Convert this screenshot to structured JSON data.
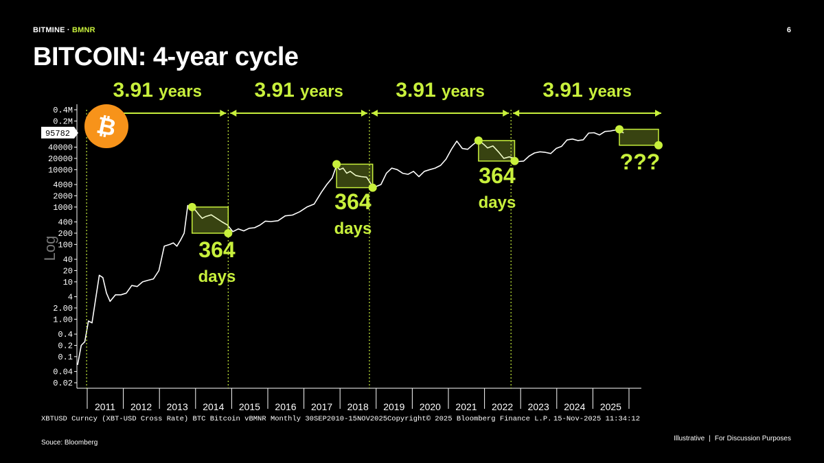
{
  "header": {
    "brand_prefix": "BITMINE · ",
    "brand_ticker": "BMNR",
    "page_number": "6"
  },
  "title": "BITCOIN: 4-year cycle",
  "footer": {
    "source": "Souce: Bloomberg",
    "illustrative": "Illustrative",
    "separator": "|",
    "discussion": "For Discussion Purposes"
  },
  "colors": {
    "accent": "#c8f03c",
    "line": "#ffffff",
    "background": "#000000",
    "bitcoin_orange": "#f7931a"
  },
  "icons": {
    "bitcoin_logo": "bitcoin-icon"
  },
  "chart_data": {
    "type": "line",
    "scale": "log",
    "ylabel": "Log",
    "current_value_label": "95782",
    "x_ticks": [
      "2011",
      "2012",
      "2013",
      "2014",
      "2015",
      "2016",
      "2017",
      "2018",
      "2019",
      "2020",
      "2021",
      "2022",
      "2023",
      "2024",
      "2025"
    ],
    "y_ticks": [
      "0.4M",
      "0.2M",
      "40000",
      "20000",
      "10000",
      "4000",
      "2000",
      "1000",
      "400",
      "200",
      "100",
      "40",
      "20",
      "10",
      "4",
      "2.00",
      "1.00",
      "0.4",
      "0.2",
      "0.1",
      "0.04",
      "0.02"
    ],
    "y_tick_values": [
      400000,
      200000,
      40000,
      20000,
      10000,
      4000,
      2000,
      1000,
      400,
      200,
      100,
      40,
      20,
      10,
      4,
      2,
      1,
      0.4,
      0.2,
      0.1,
      0.04,
      0.02
    ],
    "xlim": [
      2010.45,
      2025.95
    ],
    "ylim": [
      0.015,
      600000
    ],
    "series": [
      {
        "x": [
          2010.75,
          2010.85,
          2010.95,
          2011.05,
          2011.15,
          2011.25,
          2011.35,
          2011.45,
          2011.55,
          2011.65,
          2011.8,
          2011.95,
          2012.1,
          2012.25,
          2012.4,
          2012.55,
          2012.7,
          2012.85,
          2013.0,
          2013.15,
          2013.3,
          2013.4,
          2013.5,
          2013.6,
          2013.7,
          2013.8,
          2013.9,
          2014.0,
          2014.1,
          2014.2,
          2014.3,
          2014.45,
          2014.6,
          2014.75,
          2014.9,
          2015.05,
          2015.2,
          2015.35,
          2015.5,
          2015.65,
          2015.8,
          2015.95,
          2016.1,
          2016.3,
          2016.5,
          2016.7,
          2016.9,
          2017.1,
          2017.3,
          2017.5,
          2017.65,
          2017.8,
          2017.92,
          2018.0,
          2018.1,
          2018.2,
          2018.3,
          2018.45,
          2018.6,
          2018.75,
          2018.9,
          2019.0,
          2019.15,
          2019.3,
          2019.45,
          2019.6,
          2019.75,
          2019.9,
          2020.05,
          2020.2,
          2020.35,
          2020.5,
          2020.65,
          2020.8,
          2020.95,
          2021.1,
          2021.25,
          2021.4,
          2021.55,
          2021.7,
          2021.85,
          2022.0,
          2022.1,
          2022.25,
          2022.4,
          2022.55,
          2022.7,
          2022.85,
          2022.96,
          2023.1,
          2023.25,
          2023.4,
          2023.55,
          2023.7,
          2023.85,
          2024.0,
          2024.15,
          2024.3,
          2024.45,
          2024.6,
          2024.75,
          2024.9,
          2025.05,
          2025.2,
          2025.35,
          2025.5,
          2025.65,
          2025.75,
          2025.87
        ],
        "y": [
          0.06,
          0.2,
          0.25,
          0.9,
          0.8,
          3.5,
          15,
          13,
          5,
          3,
          4.5,
          4.5,
          5,
          8,
          7.5,
          10,
          11,
          12,
          20,
          90,
          100,
          110,
          90,
          130,
          200,
          1100,
          800,
          850,
          640,
          500,
          560,
          620,
          500,
          400,
          330,
          220,
          260,
          230,
          270,
          280,
          330,
          420,
          410,
          430,
          580,
          610,
          750,
          1000,
          1200,
          2500,
          4000,
          6000,
          13000,
          10000,
          11000,
          8000,
          9000,
          7000,
          6500,
          6300,
          3800,
          3500,
          4000,
          8000,
          11000,
          10000,
          8000,
          7500,
          9000,
          6500,
          9000,
          10000,
          11000,
          13000,
          19000,
          35000,
          58000,
          37000,
          35000,
          47000,
          61000,
          47000,
          38000,
          43000,
          30000,
          20000,
          22000,
          20000,
          16500,
          17000,
          23000,
          28000,
          30000,
          29000,
          27000,
          37000,
          42000,
          62000,
          66000,
          60000,
          63000,
          95000,
          97000,
          85000,
          105000,
          108000,
          115000,
          110000,
          95782
        ]
      }
    ],
    "cycle_markers": [
      2011.0,
      2014.92,
      2018.83,
      2022.75
    ],
    "cycle_labels": [
      "3.91 years",
      "3.91 years",
      "3.91 years",
      "3.91 years"
    ],
    "drawdowns": [
      {
        "start": [
          2013.92,
          1000
        ],
        "end": [
          2014.92,
          200
        ],
        "label": [
          "364",
          "days"
        ]
      },
      {
        "start": [
          2017.92,
          14000
        ],
        "end": [
          2018.92,
          3300
        ],
        "label": [
          "364",
          "days"
        ]
      },
      {
        "start": [
          2021.85,
          60000
        ],
        "end": [
          2022.85,
          17000
        ],
        "label": [
          "364",
          "days"
        ]
      },
      {
        "start": [
          2025.75,
          120000
        ],
        "end": [
          2026.1,
          45000
        ],
        "label": [
          "???"
        ]
      }
    ],
    "footer_left": "XBTUSD Curncy (XBT-USD Cross Rate) BTC Bitcoin vBMNR Monthly 30SEP2010-15NOV2025",
    "footer_middle": "Copyright© 2025 Bloomberg Finance L.P.",
    "footer_right": "15-Nov-2025 11:34:12"
  }
}
